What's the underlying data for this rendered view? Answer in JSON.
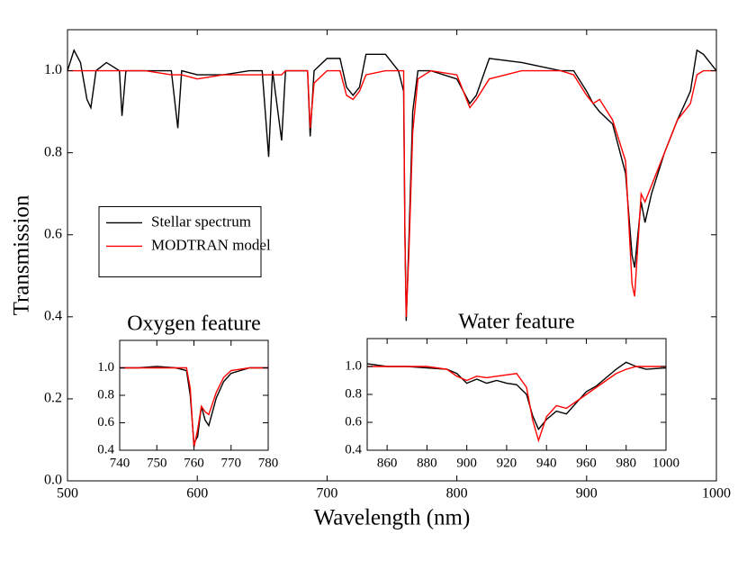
{
  "chart_data": [
    {
      "type": "line",
      "xlabel": "Wavelength (nm)",
      "ylabel": "Transmission",
      "x": [
        500,
        505,
        510,
        515,
        518,
        522,
        530,
        540,
        542,
        545,
        560,
        580,
        585,
        588,
        600,
        620,
        640,
        650,
        655,
        658,
        665,
        668,
        685,
        687,
        690,
        700,
        710,
        715,
        720,
        725,
        730,
        745,
        755,
        759,
        760,
        761,
        763,
        766,
        770,
        780,
        800,
        810,
        815,
        825,
        850,
        880,
        890,
        900,
        905,
        910,
        920,
        930,
        935,
        937,
        942,
        945,
        950,
        960,
        970,
        980,
        985,
        990,
        995,
        1000
      ],
      "series": [
        {
          "name": "Stellar spectrum",
          "color": "#000000",
          "values": [
            1.0,
            1.05,
            1.02,
            0.93,
            0.91,
            1.0,
            1.02,
            1.0,
            0.89,
            1.0,
            1.0,
            1.0,
            0.86,
            1.0,
            0.99,
            0.99,
            1.0,
            1.0,
            0.79,
            1.0,
            0.83,
            1.0,
            1.0,
            0.84,
            1.0,
            1.03,
            1.03,
            0.96,
            0.94,
            0.96,
            1.04,
            1.04,
            1.0,
            0.95,
            0.6,
            0.39,
            0.58,
            0.9,
            1.0,
            1.0,
            0.98,
            0.92,
            0.94,
            1.03,
            1.02,
            1.0,
            1.0,
            0.95,
            0.92,
            0.9,
            0.87,
            0.75,
            0.55,
            0.52,
            0.68,
            0.63,
            0.7,
            0.8,
            0.88,
            0.95,
            1.05,
            1.04,
            1.02,
            1.0
          ]
        },
        {
          "name": "MODTRAN model",
          "color": "#ff0000",
          "values": [
            1.0,
            1.0,
            1.0,
            1.0,
            1.0,
            1.0,
            1.0,
            1.0,
            1.0,
            1.0,
            1.0,
            0.99,
            0.99,
            0.99,
            0.98,
            0.99,
            0.99,
            0.99,
            0.99,
            0.99,
            0.99,
            1.0,
            1.0,
            0.86,
            0.97,
            1.0,
            1.0,
            0.94,
            0.93,
            0.95,
            0.99,
            1.0,
            1.0,
            1.0,
            0.6,
            0.4,
            0.55,
            0.85,
            0.98,
            1.0,
            0.99,
            0.91,
            0.93,
            0.98,
            1.0,
            1.0,
            0.99,
            0.94,
            0.92,
            0.93,
            0.88,
            0.78,
            0.48,
            0.45,
            0.7,
            0.68,
            0.72,
            0.8,
            0.88,
            0.92,
            0.99,
            1.0,
            1.0,
            1.0
          ]
        }
      ],
      "xlim": [
        500,
        1000
      ],
      "xticks": [
        500,
        600,
        700,
        800,
        900,
        1000
      ],
      "ylim": [
        0,
        1.1
      ],
      "yticks": [
        {
          "value": 0,
          "label": "0.0"
        },
        0.2,
        0.4,
        0.6,
        0.8,
        {
          "value": 1,
          "label": "1.0"
        }
      ],
      "legend": "center left",
      "grid": false
    },
    {
      "type": "line",
      "title": "Oxygen feature",
      "x": [
        740,
        745,
        750,
        755,
        758,
        759,
        760,
        761,
        762,
        763,
        764,
        766,
        768,
        770,
        775,
        780
      ],
      "series": [
        {
          "color": "#000000",
          "values": [
            1.0,
            1.0,
            1.01,
            1.0,
            0.98,
            0.8,
            0.45,
            0.5,
            0.72,
            0.62,
            0.58,
            0.78,
            0.9,
            0.96,
            1.0,
            1.0
          ]
        },
        {
          "color": "#ff0000",
          "values": [
            1.0,
            1.0,
            1.0,
            1.0,
            1.0,
            0.85,
            0.42,
            0.55,
            0.72,
            0.68,
            0.66,
            0.82,
            0.93,
            0.98,
            1.0,
            1.0
          ]
        }
      ],
      "xlim": [
        740,
        780
      ],
      "xticks": [
        740,
        750,
        760,
        770,
        780
      ],
      "ylim": [
        0.4,
        1.2
      ],
      "yticks": [
        0.4,
        0.6,
        0.8,
        {
          "value": 1,
          "label": "1.0"
        }
      ],
      "grid": false
    },
    {
      "type": "line",
      "title": "Water feature",
      "x": [
        850,
        860,
        870,
        880,
        890,
        895,
        900,
        905,
        910,
        915,
        920,
        925,
        930,
        933,
        936,
        940,
        945,
        950,
        955,
        960,
        965,
        970,
        975,
        980,
        985,
        990,
        1000
      ],
      "series": [
        {
          "color": "#000000",
          "values": [
            1.02,
            1.0,
            1.0,
            0.99,
            0.98,
            0.95,
            0.88,
            0.91,
            0.88,
            0.9,
            0.88,
            0.87,
            0.8,
            0.65,
            0.55,
            0.62,
            0.68,
            0.66,
            0.74,
            0.82,
            0.86,
            0.92,
            0.98,
            1.03,
            1.0,
            0.98,
            0.99
          ]
        },
        {
          "color": "#ff0000",
          "values": [
            1.0,
            1.0,
            1.0,
            1.0,
            0.98,
            0.93,
            0.9,
            0.93,
            0.92,
            0.93,
            0.94,
            0.95,
            0.85,
            0.62,
            0.47,
            0.64,
            0.72,
            0.7,
            0.75,
            0.8,
            0.85,
            0.9,
            0.95,
            0.98,
            1.0,
            1.0,
            1.0
          ]
        }
      ],
      "xlim": [
        850,
        1000
      ],
      "xticks": [
        860,
        880,
        900,
        920,
        940,
        960,
        980,
        1000
      ],
      "ylim": [
        0.4,
        1.2
      ],
      "yticks": [
        0.4,
        0.6,
        0.8,
        {
          "value": 1,
          "label": "1.0"
        }
      ],
      "grid": false
    }
  ]
}
